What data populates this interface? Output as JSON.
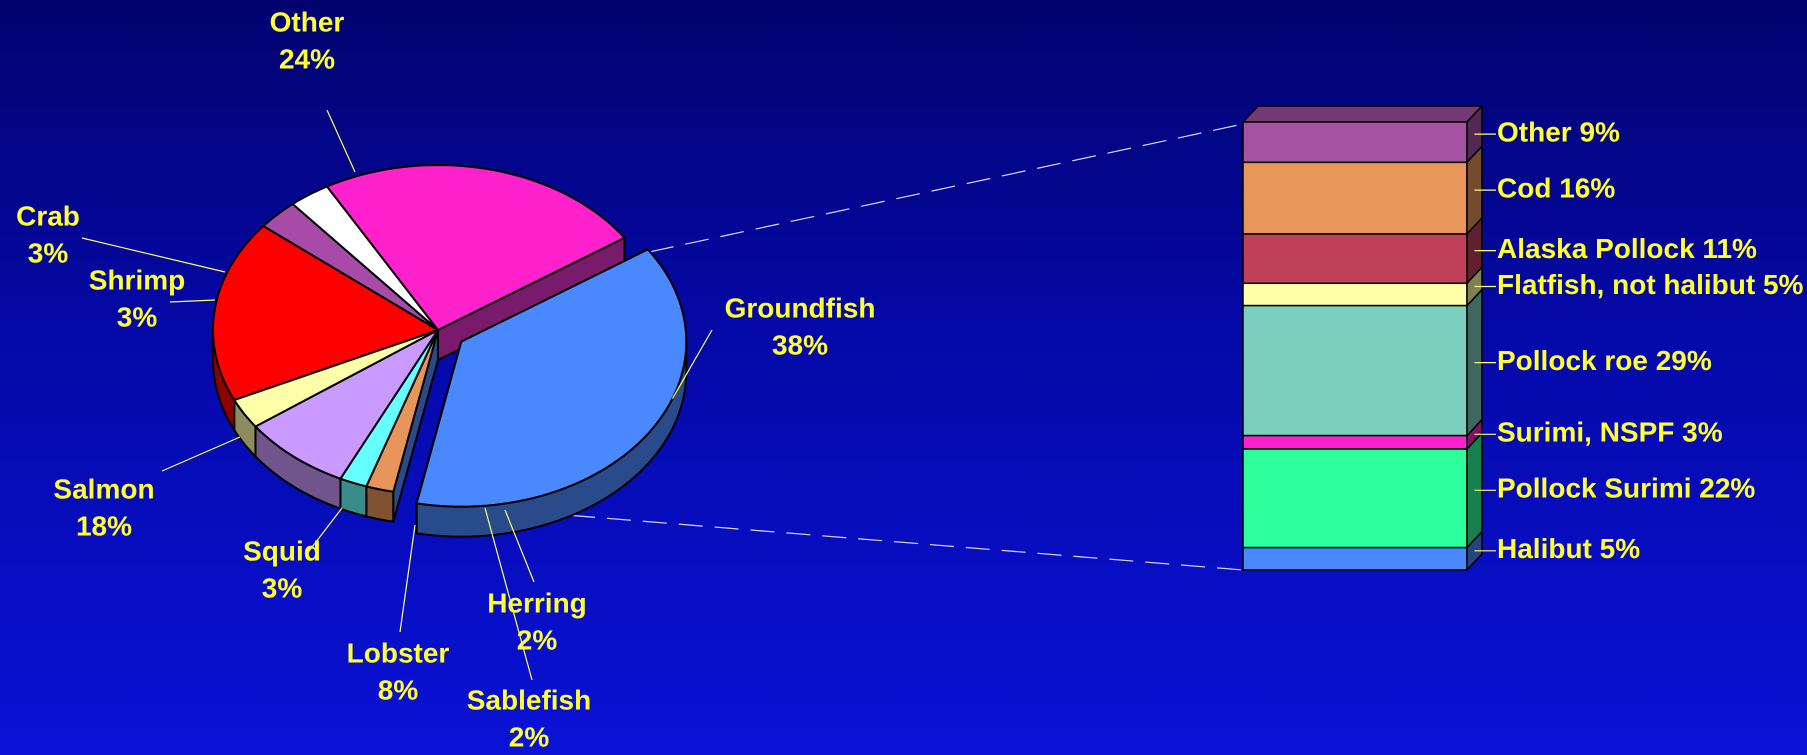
{
  "chart_data": [
    {
      "type": "pie",
      "slices": [
        {
          "label": "Groundfish",
          "value": 38,
          "value_label": "38%",
          "color": "#4a88ff",
          "exploded": true
        },
        {
          "label": "Herring",
          "value": 2,
          "value_label": "2%",
          "color": "#e8955a"
        },
        {
          "label": "Sablefish",
          "value": 2,
          "value_label": "2%",
          "color": "#66ffff"
        },
        {
          "label": "Lobster",
          "value": 8,
          "value_label": "8%",
          "color": "#c99aff"
        },
        {
          "label": "Squid",
          "value": 3,
          "value_label": "3%",
          "color": "#ffffaa"
        },
        {
          "label": "Salmon",
          "value": 18,
          "value_label": "18%",
          "color": "#ff0000"
        },
        {
          "label": "Shrimp",
          "value": 3,
          "value_label": "3%",
          "color": "#a84aa8"
        },
        {
          "label": "Crab",
          "value": 3,
          "value_label": "3%",
          "color": "#ffffff"
        },
        {
          "label": "Other",
          "value": 24,
          "value_label": "24%",
          "color": "#ff22cc"
        }
      ],
      "label_color": "#ffff33"
    },
    {
      "type": "bar",
      "stacked": true,
      "breakdown_of": "Groundfish",
      "segments": [
        {
          "label": "Other  9%",
          "value": 9,
          "color": "#a552a5"
        },
        {
          "label": "Cod  16%",
          "value": 16,
          "color": "#e8965a"
        },
        {
          "label": "Alaska Pollock  11%",
          "value": 11,
          "color": "#c0405a"
        },
        {
          "label": "Flatfish, not halibut  5%",
          "value": 5,
          "color": "#ffffaa"
        },
        {
          "label": "Pollock roe  29%",
          "value": 29,
          "color": "#7ccfbe"
        },
        {
          "label": "Surimi, NSPF  3%",
          "value": 3,
          "color": "#ff22cc"
        },
        {
          "label": "Pollock Surimi  22%",
          "value": 22,
          "color": "#2cff9c"
        },
        {
          "label": "Halibut  5%",
          "value": 5,
          "color": "#4a88ff"
        }
      ],
      "label_color": "#ffff33"
    }
  ]
}
